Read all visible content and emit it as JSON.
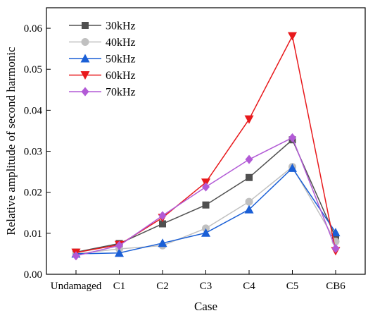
{
  "chart_data": {
    "type": "line",
    "xlabel": "Case",
    "ylabel": "Relative amplitude of second harmonic",
    "categories": [
      "Undamaged",
      "C1",
      "C2",
      "C3",
      "C4",
      "C5",
      "CB6"
    ],
    "ylim": [
      0,
      0.065
    ],
    "yticks": [
      "0.00",
      "0.01",
      "0.02",
      "0.03",
      "0.04",
      "0.05",
      "0.06"
    ],
    "grid": false,
    "legend_position": "top-left",
    "series": [
      {
        "name": "30kHz",
        "color": "#505050",
        "marker": "square",
        "values": [
          0.0054,
          0.0075,
          0.0123,
          0.0169,
          0.0236,
          0.0328,
          0.009
        ]
      },
      {
        "name": "40kHz",
        "color": "#c0c0c0",
        "marker": "circle",
        "values": [
          0.005,
          0.0062,
          0.007,
          0.0112,
          0.0177,
          0.0262,
          0.008
        ]
      },
      {
        "name": "50kHz",
        "color": "#1a5fd6",
        "marker": "triangle-up",
        "values": [
          0.005,
          0.0052,
          0.0076,
          0.0101,
          0.0158,
          0.0259,
          0.0102
        ]
      },
      {
        "name": "60kHz",
        "color": "#e8191c",
        "marker": "triangle-down",
        "values": [
          0.0053,
          0.0072,
          0.0138,
          0.0224,
          0.0378,
          0.0581,
          0.0057
        ]
      },
      {
        "name": "70kHz",
        "color": "#b25ad6",
        "marker": "diamond",
        "values": [
          0.0045,
          0.007,
          0.0143,
          0.0213,
          0.028,
          0.0333,
          0.0063
        ]
      }
    ]
  }
}
